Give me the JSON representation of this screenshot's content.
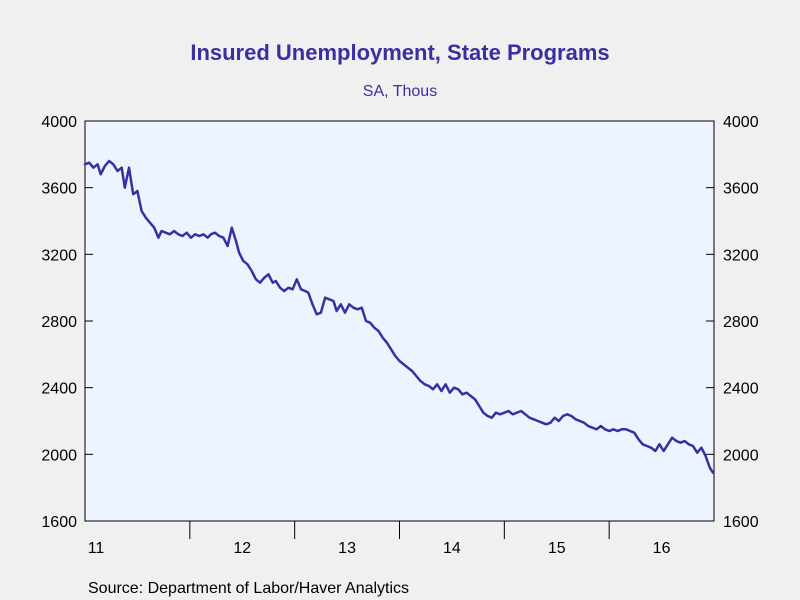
{
  "chart_data": {
    "type": "line",
    "title": "Insured Unemployment, State Programs",
    "subtitle": "SA, Thous",
    "source": "Source:  Department of Labor/Haver Analytics",
    "ylim": [
      1600,
      4000
    ],
    "y_ticks": [
      "4000",
      "3600",
      "3200",
      "2800",
      "2400",
      "2000",
      "1600"
    ],
    "x_range": [
      2011.0,
      2017.0
    ],
    "x_tick_labels": [
      "11",
      "12",
      "13",
      "14",
      "15",
      "16"
    ],
    "grid": false,
    "line_color": "#3a2fa0",
    "plot_bg": "#eef4ff",
    "series": [
      {
        "values": [
          [
            2011.0,
            3740
          ],
          [
            2011.04,
            3750
          ],
          [
            2011.08,
            3720
          ],
          [
            2011.12,
            3740
          ],
          [
            2011.15,
            3680
          ],
          [
            2011.19,
            3730
          ],
          [
            2011.23,
            3760
          ],
          [
            2011.27,
            3740
          ],
          [
            2011.31,
            3700
          ],
          [
            2011.35,
            3720
          ],
          [
            2011.38,
            3600
          ],
          [
            2011.42,
            3720
          ],
          [
            2011.46,
            3560
          ],
          [
            2011.5,
            3580
          ],
          [
            2011.54,
            3460
          ],
          [
            2011.58,
            3420
          ],
          [
            2011.62,
            3390
          ],
          [
            2011.66,
            3360
          ],
          [
            2011.7,
            3300
          ],
          [
            2011.73,
            3340
          ],
          [
            2011.77,
            3330
          ],
          [
            2011.81,
            3320
          ],
          [
            2011.85,
            3340
          ],
          [
            2011.89,
            3320
          ],
          [
            2011.93,
            3310
          ],
          [
            2011.97,
            3330
          ],
          [
            2012.01,
            3300
          ],
          [
            2012.05,
            3320
          ],
          [
            2012.09,
            3310
          ],
          [
            2012.13,
            3320
          ],
          [
            2012.17,
            3300
          ],
          [
            2012.2,
            3320
          ],
          [
            2012.24,
            3330
          ],
          [
            2012.28,
            3310
          ],
          [
            2012.32,
            3300
          ],
          [
            2012.36,
            3250
          ],
          [
            2012.4,
            3360
          ],
          [
            2012.44,
            3280
          ],
          [
            2012.47,
            3210
          ],
          [
            2012.51,
            3160
          ],
          [
            2012.55,
            3140
          ],
          [
            2012.59,
            3100
          ],
          [
            2012.63,
            3050
          ],
          [
            2012.67,
            3030
          ],
          [
            2012.71,
            3060
          ],
          [
            2012.75,
            3080
          ],
          [
            2012.79,
            3030
          ],
          [
            2012.82,
            3040
          ],
          [
            2012.86,
            3000
          ],
          [
            2012.9,
            2980
          ],
          [
            2012.94,
            3000
          ],
          [
            2012.98,
            2990
          ],
          [
            2013.02,
            3050
          ],
          [
            2013.06,
            2990
          ],
          [
            2013.1,
            2980
          ],
          [
            2013.13,
            2970
          ],
          [
            2013.17,
            2900
          ],
          [
            2013.21,
            2840
          ],
          [
            2013.25,
            2850
          ],
          [
            2013.29,
            2940
          ],
          [
            2013.33,
            2930
          ],
          [
            2013.37,
            2920
          ],
          [
            2013.4,
            2860
          ],
          [
            2013.44,
            2900
          ],
          [
            2013.48,
            2850
          ],
          [
            2013.52,
            2900
          ],
          [
            2013.56,
            2880
          ],
          [
            2013.6,
            2870
          ],
          [
            2013.64,
            2880
          ],
          [
            2013.68,
            2800
          ],
          [
            2013.72,
            2790
          ],
          [
            2013.76,
            2760
          ],
          [
            2013.8,
            2740
          ],
          [
            2013.84,
            2700
          ],
          [
            2013.88,
            2670
          ],
          [
            2013.92,
            2630
          ],
          [
            2013.96,
            2590
          ],
          [
            2014.0,
            2560
          ],
          [
            2014.04,
            2540
          ],
          [
            2014.08,
            2520
          ],
          [
            2014.12,
            2500
          ],
          [
            2014.16,
            2470
          ],
          [
            2014.2,
            2440
          ],
          [
            2014.24,
            2420
          ],
          [
            2014.28,
            2410
          ],
          [
            2014.32,
            2390
          ],
          [
            2014.36,
            2420
          ],
          [
            2014.4,
            2380
          ],
          [
            2014.44,
            2420
          ],
          [
            2014.48,
            2370
          ],
          [
            2014.52,
            2400
          ],
          [
            2014.56,
            2390
          ],
          [
            2014.6,
            2360
          ],
          [
            2014.64,
            2370
          ],
          [
            2014.68,
            2350
          ],
          [
            2014.72,
            2330
          ],
          [
            2014.76,
            2290
          ],
          [
            2014.8,
            2250
          ],
          [
            2014.84,
            2230
          ],
          [
            2014.88,
            2220
          ],
          [
            2014.92,
            2250
          ],
          [
            2014.96,
            2240
          ],
          [
            2015.0,
            2250
          ],
          [
            2015.04,
            2260
          ],
          [
            2015.08,
            2240
          ],
          [
            2015.12,
            2250
          ],
          [
            2015.16,
            2260
          ],
          [
            2015.2,
            2240
          ],
          [
            2015.24,
            2220
          ],
          [
            2015.28,
            2210
          ],
          [
            2015.32,
            2200
          ],
          [
            2015.36,
            2190
          ],
          [
            2015.4,
            2180
          ],
          [
            2015.44,
            2190
          ],
          [
            2015.48,
            2220
          ],
          [
            2015.52,
            2200
          ],
          [
            2015.56,
            2230
          ],
          [
            2015.6,
            2240
          ],
          [
            2015.64,
            2230
          ],
          [
            2015.68,
            2210
          ],
          [
            2015.72,
            2200
          ],
          [
            2015.76,
            2190
          ],
          [
            2015.8,
            2170
          ],
          [
            2015.84,
            2160
          ],
          [
            2015.88,
            2150
          ],
          [
            2015.92,
            2170
          ],
          [
            2015.96,
            2150
          ],
          [
            2016.0,
            2140
          ],
          [
            2016.04,
            2150
          ],
          [
            2016.08,
            2140
          ],
          [
            2016.12,
            2150
          ],
          [
            2016.16,
            2150
          ],
          [
            2016.2,
            2140
          ],
          [
            2016.24,
            2130
          ],
          [
            2016.28,
            2090
          ],
          [
            2016.32,
            2060
          ],
          [
            2016.36,
            2050
          ],
          [
            2016.4,
            2040
          ],
          [
            2016.44,
            2020
          ],
          [
            2016.48,
            2060
          ],
          [
            2016.52,
            2020
          ],
          [
            2016.56,
            2060
          ],
          [
            2016.6,
            2100
          ],
          [
            2016.64,
            2080
          ],
          [
            2016.68,
            2070
          ],
          [
            2016.72,
            2080
          ],
          [
            2016.76,
            2060
          ],
          [
            2016.8,
            2050
          ],
          [
            2016.84,
            2010
          ],
          [
            2016.88,
            2040
          ],
          [
            2016.92,
            1990
          ],
          [
            2016.96,
            1920
          ],
          [
            2016.99,
            1890
          ]
        ]
      }
    ]
  }
}
